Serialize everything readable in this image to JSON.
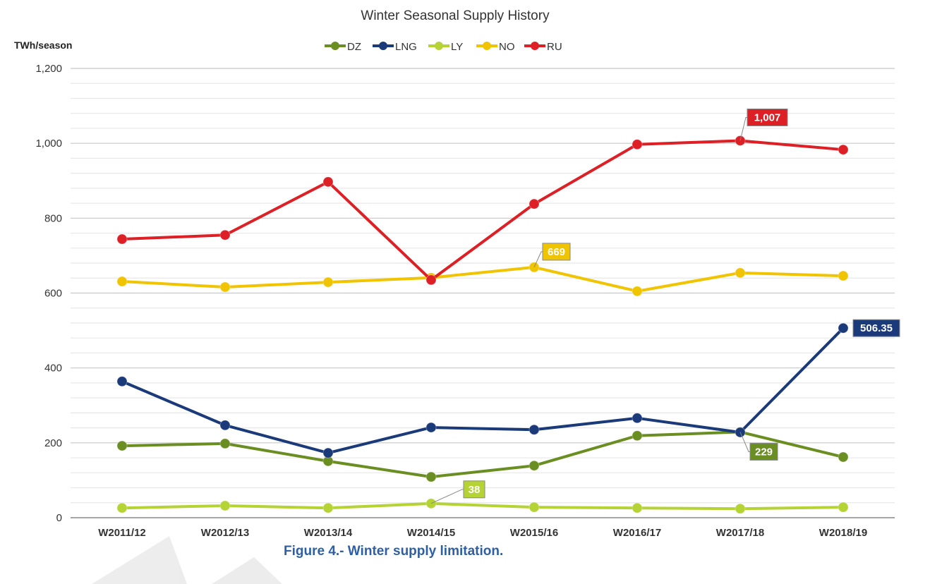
{
  "chart_data": {
    "type": "line",
    "title": "Winter Seasonal Supply History",
    "ylabel": "TWh/season",
    "xlabel": "",
    "ylim": [
      0,
      1200
    ],
    "yticks": [
      "0",
      "200",
      "400",
      "600",
      "800",
      "1,000",
      "1,200"
    ],
    "ytick_values": [
      0,
      200,
      400,
      600,
      800,
      1000,
      1200
    ],
    "grid": true,
    "legend_position": "top-center",
    "categories": [
      "W2011/12",
      "W2012/13",
      "W2013/14",
      "W2014/15",
      "W2015/16",
      "W2016/17",
      "W2017/18",
      "W2018/19"
    ],
    "series": [
      {
        "name": "DZ",
        "color": "#6b8e23",
        "values": [
          192,
          198,
          151,
          109,
          139,
          219,
          229,
          162
        ]
      },
      {
        "name": "LNG",
        "color": "#1b3a7a",
        "values": [
          364,
          247,
          173,
          241,
          235,
          266,
          228,
          506.35
        ]
      },
      {
        "name": "LY",
        "color": "#b5d334",
        "values": [
          26,
          32,
          26,
          38,
          28,
          26,
          24,
          28
        ]
      },
      {
        "name": "NO",
        "color": "#f0c400",
        "values": [
          631,
          616,
          629,
          641,
          669,
          605,
          654,
          646
        ]
      },
      {
        "name": "RU",
        "color": "#dd1f26",
        "values": [
          744,
          755,
          897,
          635,
          838,
          997,
          1007,
          983
        ]
      }
    ],
    "annotations": [
      {
        "series": "RU",
        "category": "W2017/18",
        "text": "1,007"
      },
      {
        "series": "NO",
        "category": "W2015/16",
        "text": "669"
      },
      {
        "series": "LNG",
        "category": "W2018/19",
        "text": "506.35"
      },
      {
        "series": "DZ",
        "category": "W2017/18",
        "text": "229"
      },
      {
        "series": "LY",
        "category": "W2014/15",
        "text": "38"
      }
    ]
  },
  "caption": "Figure 4.- Winter supply limitation."
}
